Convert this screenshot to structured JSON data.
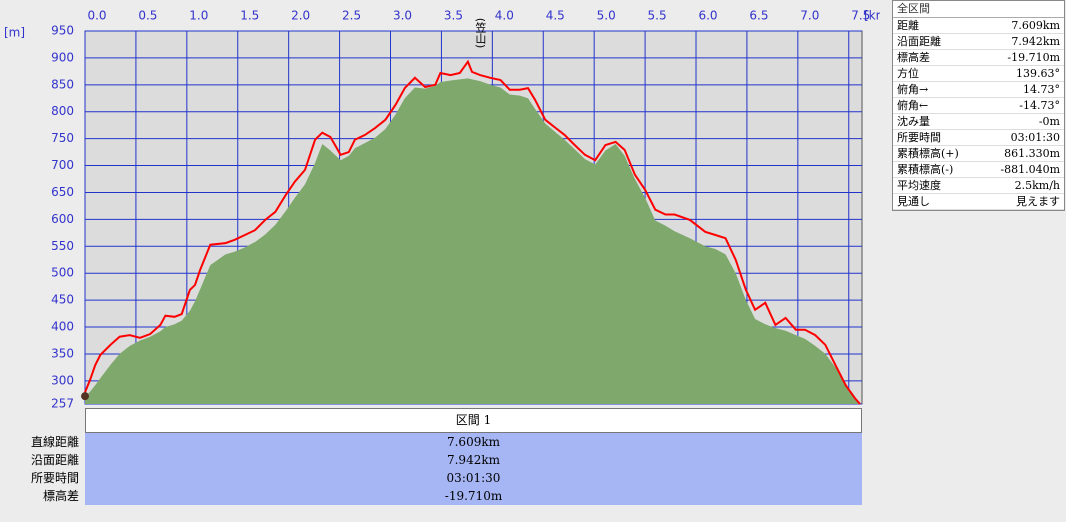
{
  "chart_data": {
    "type": "line",
    "y_unit": "[m]",
    "x_unit": "[km]",
    "annotation": "(笠山)",
    "x": [
      0,
      0.05,
      0.1,
      0.15,
      0.25,
      0.34,
      0.44,
      0.54,
      0.64,
      0.74,
      0.79,
      0.88,
      0.95,
      1.03,
      1.08,
      1.13,
      1.23,
      1.38,
      1.47,
      1.57,
      1.67,
      1.77,
      1.87,
      1.97,
      2.06,
      2.16,
      2.26,
      2.33,
      2.41,
      2.51,
      2.59,
      2.65,
      2.75,
      2.85,
      2.95,
      3.05,
      3.14,
      3.24,
      3.34,
      3.44,
      3.49,
      3.59,
      3.68,
      3.76,
      3.8,
      3.88,
      3.98,
      4.08,
      4.17,
      4.27,
      4.35,
      4.42,
      4.52,
      4.62,
      4.71,
      4.81,
      4.91,
      5.01,
      5.11,
      5.21,
      5.3,
      5.4,
      5.5,
      5.6,
      5.7,
      5.79,
      5.94,
      6.09,
      6.19,
      6.29,
      6.39,
      6.49,
      6.58,
      6.68,
      6.78,
      6.88,
      6.98,
      7.07,
      7.17,
      7.27,
      7.37,
      7.47,
      7.56,
      7.61
    ],
    "series": [
      {
        "color": "#7fa86c",
        "fill": true,
        "values": [
          270,
          280,
          292,
          305,
          330,
          350,
          365,
          375,
          382,
          392,
          400,
          405,
          412,
          430,
          448,
          470,
          515,
          535,
          540,
          548,
          558,
          572,
          590,
          615,
          640,
          665,
          705,
          740,
          728,
          710,
          718,
          732,
          742,
          752,
          768,
          795,
          825,
          845,
          843,
          848,
          855,
          858,
          860,
          862,
          860,
          857,
          850,
          845,
          832,
          830,
          825,
          805,
          778,
          762,
          748,
          730,
          712,
          702,
          728,
          740,
          718,
          675,
          640,
          598,
          588,
          578,
          565,
          550,
          545,
          535,
          500,
          450,
          415,
          405,
          398,
          393,
          385,
          378,
          365,
          350,
          325,
          295,
          268,
          257
        ]
      },
      {
        "color": "#ff0000",
        "fill": false,
        "values": [
          279,
          302,
          329,
          348,
          367,
          382,
          385,
          380,
          387,
          404,
          421,
          419,
          424,
          469,
          478,
          506,
          553,
          556,
          562,
          571,
          580,
          599,
          614,
          645,
          670,
          692,
          748,
          761,
          753,
          720,
          725,
          748,
          757,
          770,
          785,
          813,
          844,
          863,
          846,
          850,
          872,
          868,
          872,
          893,
          874,
          868,
          863,
          859,
          841,
          841,
          844,
          822,
          785,
          770,
          757,
          738,
          720,
          710,
          738,
          744,
          729,
          683,
          655,
          618,
          609,
          609,
          599,
          577,
          571,
          565,
          525,
          469,
          432,
          445,
          404,
          417,
          395,
          395,
          385,
          367,
          329,
          292,
          268,
          257
        ]
      }
    ],
    "xlim": [
      0,
      7.63
    ],
    "ylim": [
      257,
      950
    ],
    "xticks": [
      {
        "value": 0,
        "label": "0.0"
      },
      0.5,
      {
        "value": 1,
        "label": "1.0"
      },
      1.5,
      {
        "value": 2,
        "label": "2.0"
      },
      2.5,
      {
        "value": 3,
        "label": "3.0"
      },
      3.5,
      {
        "value": 4,
        "label": "4.0"
      },
      4.5,
      {
        "value": 5,
        "label": "5.0"
      },
      5.5,
      {
        "value": 6,
        "label": "6.0"
      },
      6.5,
      {
        "value": 7,
        "label": "7.0"
      },
      7.5
    ],
    "yticks": [
      257,
      300,
      350,
      400,
      450,
      500,
      550,
      600,
      650,
      700,
      750,
      800,
      850,
      900,
      950
    ],
    "grid": true
  },
  "info_panel": {
    "title": "全区間",
    "rows": [
      [
        "距離",
        "7.609km"
      ],
      [
        "沿面距離",
        "7.942km"
      ],
      [
        "標高差",
        "-19.710m"
      ],
      [
        "方位",
        "139.63°"
      ],
      [
        "俯角→",
        "14.73°"
      ],
      [
        "俯角←",
        "-14.73°"
      ],
      [
        "沈み量",
        "-0m"
      ],
      [
        "所要時間",
        "03:01:30"
      ],
      [
        "累積標高(+)",
        "861.330m"
      ],
      [
        "累積標高(-)",
        "-881.040m"
      ],
      [
        "平均速度",
        "2.5km/h"
      ],
      [
        "見通し",
        "見えます"
      ]
    ]
  },
  "section_table": {
    "header": "区間 1",
    "rows": [
      [
        "直線距離",
        "7.609km"
      ],
      [
        "沿面距離",
        "7.942km"
      ],
      [
        "所要時間",
        "03:01:30"
      ],
      [
        "標高差",
        "-19.710m"
      ]
    ]
  }
}
